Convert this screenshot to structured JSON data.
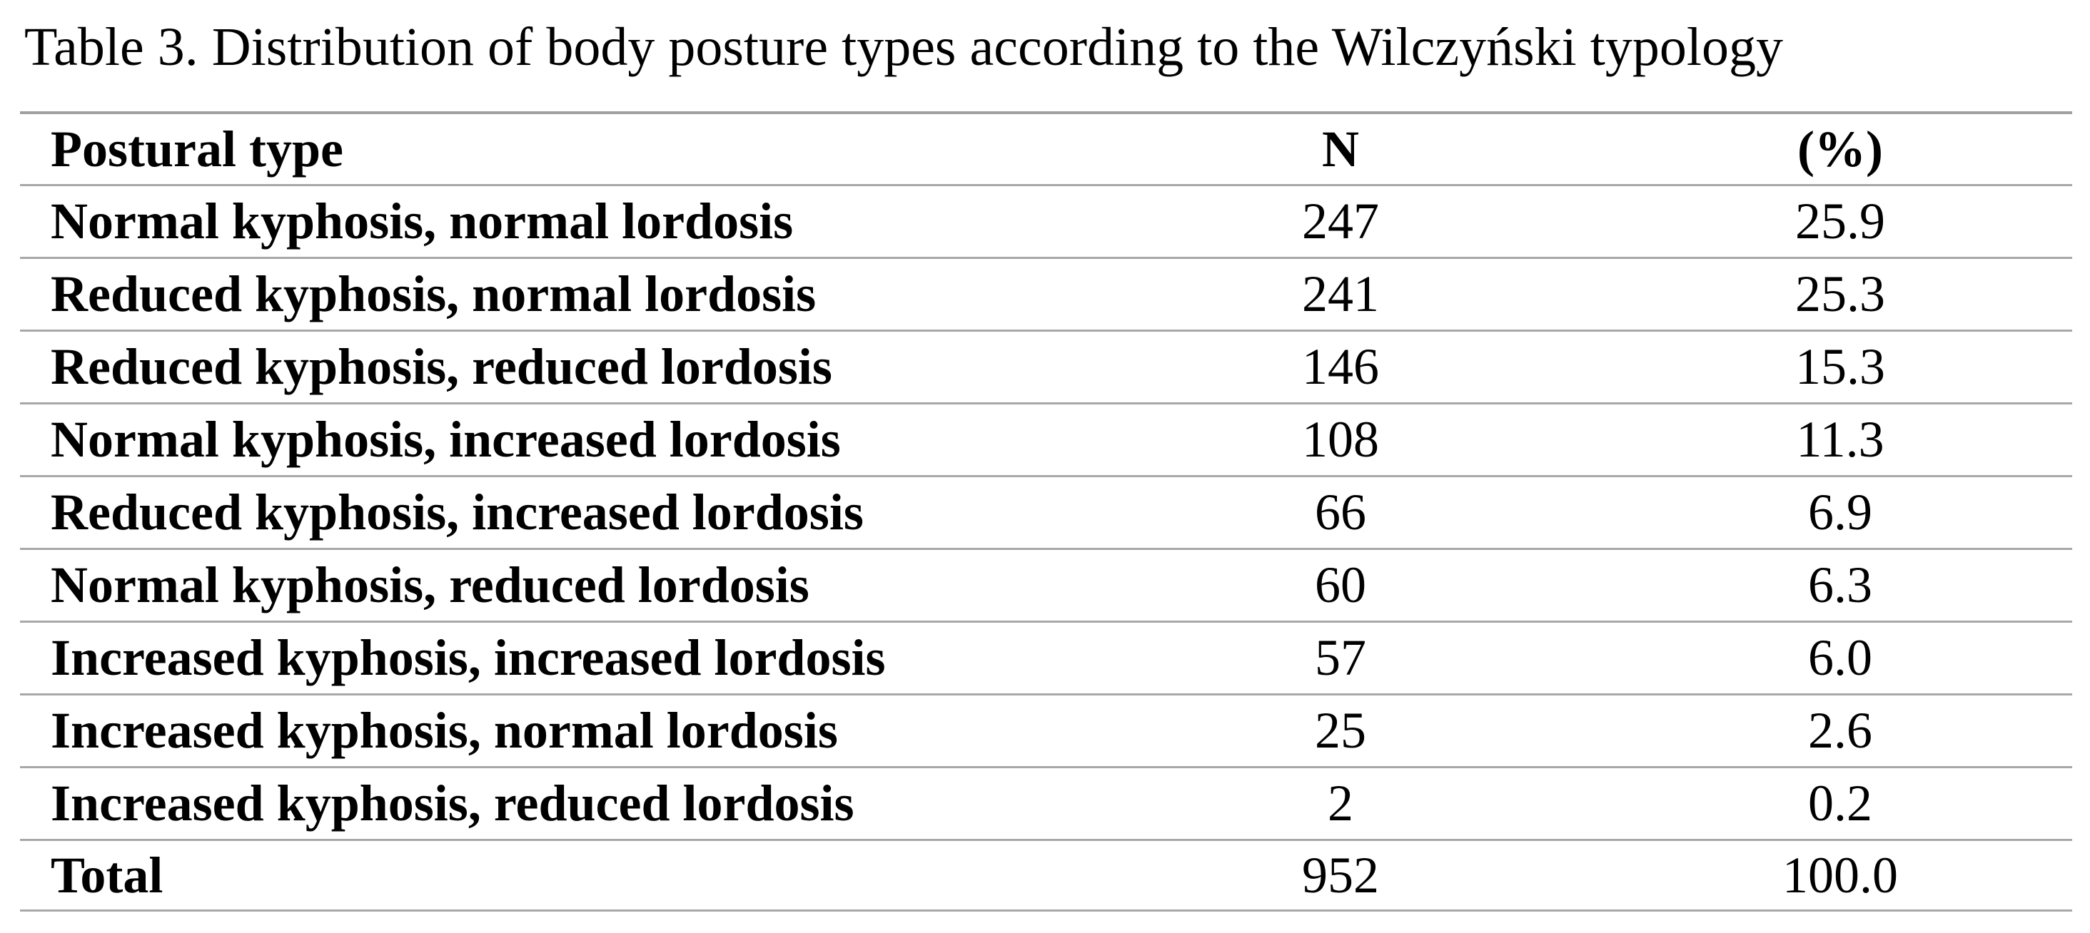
{
  "title": "Table 3. Distribution of body posture types according to the Wilczyński typology",
  "table": {
    "header": [
      "Postural type",
      "N",
      "(%)"
    ],
    "rows": [
      [
        "Normal kyphosis, normal lordosis",
        "247",
        "25.9"
      ],
      [
        "Reduced kyphosis, normal lordosis",
        "241",
        "25.3"
      ],
      [
        "Reduced kyphosis, reduced lordosis",
        "146",
        "15.3"
      ],
      [
        "Normal kyphosis, increased lordosis",
        "108",
        "11.3"
      ],
      [
        "Reduced kyphosis, increased lordosis",
        "66",
        "6.9"
      ],
      [
        "Normal kyphosis, reduced lordosis",
        "60",
        "6.3"
      ],
      [
        "Increased kyphosis, increased lordosis",
        "57",
        "6.0"
      ],
      [
        "Increased kyphosis, normal lordosis",
        "25",
        "2.6"
      ],
      [
        "Increased kyphosis, reduced lordosis",
        "2",
        "0.2"
      ],
      [
        "Total",
        "952",
        "100.0"
      ]
    ]
  }
}
